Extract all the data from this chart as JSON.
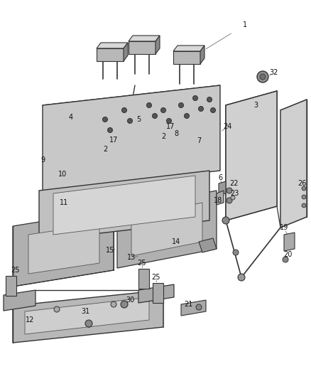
{
  "bg_color": "#ffffff",
  "lc": "#555555",
  "lc_dark": "#333333",
  "gray_light": "#d8d8d8",
  "gray_mid": "#b8b8b8",
  "gray_dark": "#888888",
  "gray_seat": "#c4c4c4",
  "label_fs": 7.0,
  "figw": 4.38,
  "figh": 5.33,
  "dpi": 100
}
